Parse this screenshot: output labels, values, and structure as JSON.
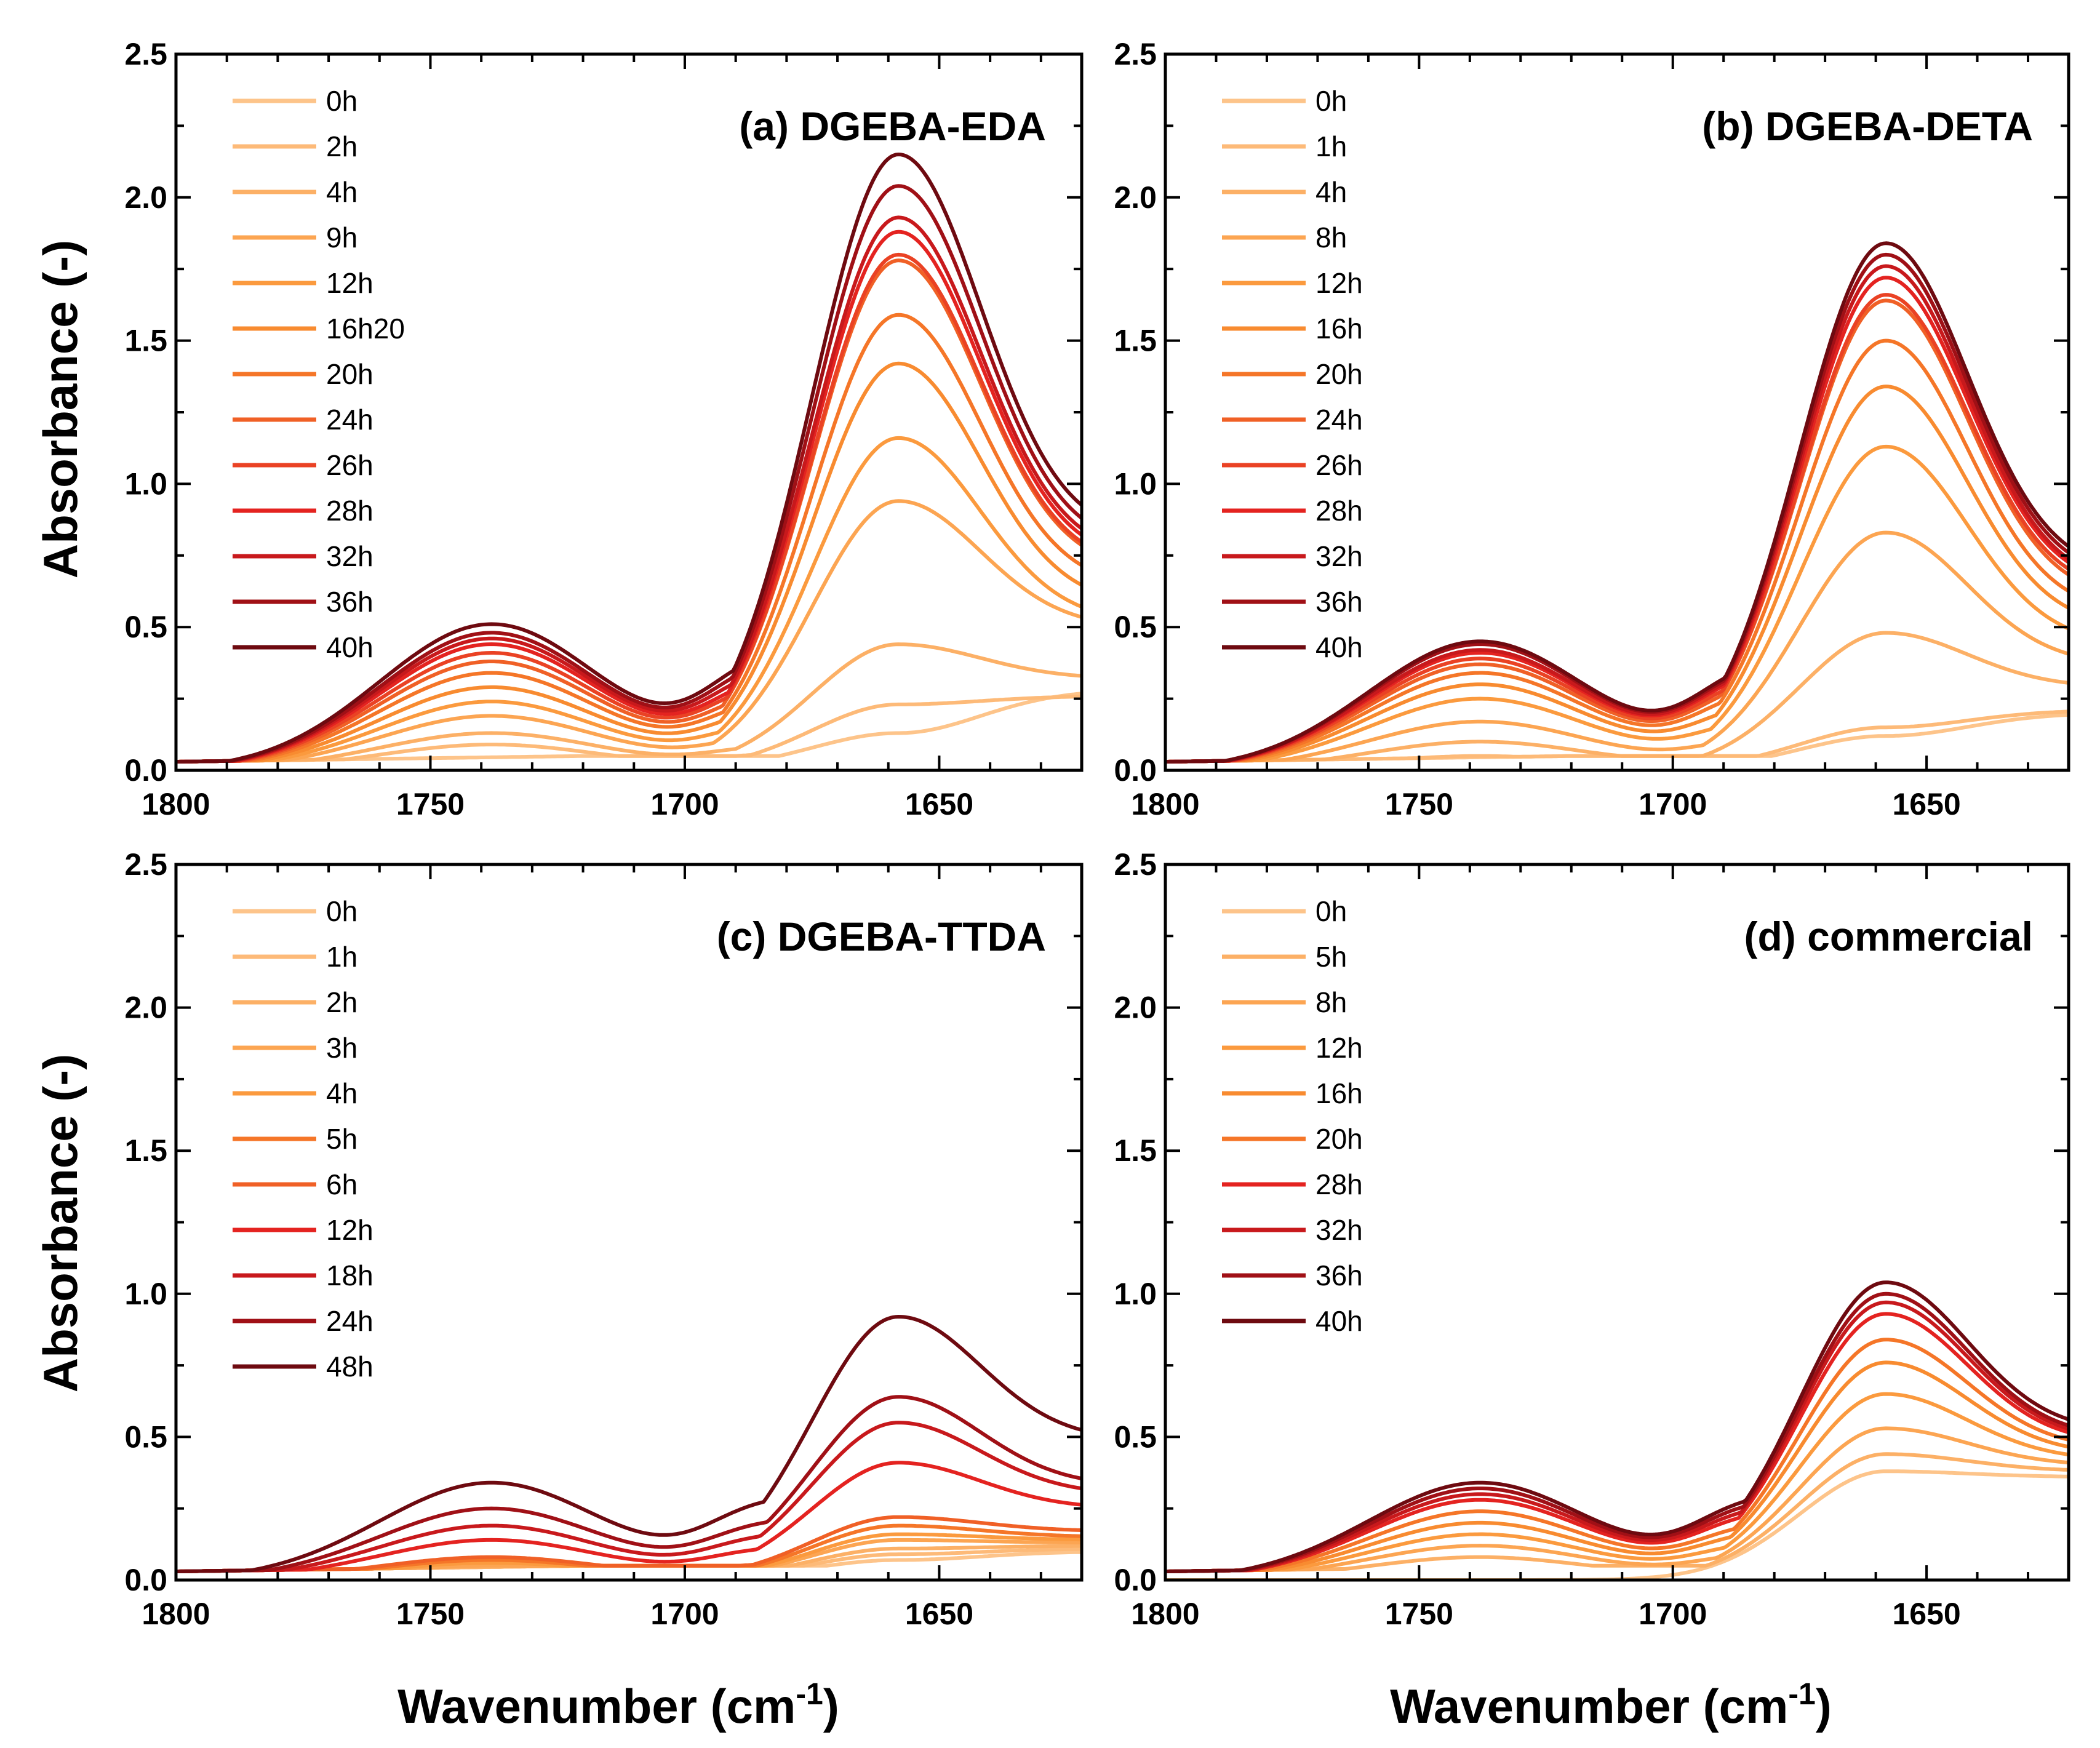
{
  "figure": {
    "ylabel": "Absorbance (-)",
    "xlabel_main": "Wavenumber (cm",
    "xlabel_sup": "-1",
    "xlabel_close": ")"
  },
  "chart_data": [
    {
      "type": "line",
      "title": "(a) DGEBA-EDA",
      "xlim": [
        1800,
        1622
      ],
      "ylim": [
        0,
        2.5
      ],
      "xticks": [
        "1800",
        "1750",
        "1700",
        "1650"
      ],
      "yticks": [
        "0.0",
        "0.5",
        "1.0",
        "1.5",
        "2.0",
        "2.5"
      ],
      "xlabel": "Wavenumber (cm-1)",
      "ylabel": "Absorbance (-)",
      "legend": "top-left",
      "series": [
        {
          "name": "0h",
          "color": "#fdc48a",
          "bandTop": 0.04,
          "bandBottom": 0.04,
          "peak": 0.13,
          "end": 0.28
        },
        {
          "name": "2h",
          "color": "#fdba78",
          "bandTop": 0.09,
          "bandBottom": 0.06,
          "peak": 0.23,
          "end": 0.26
        },
        {
          "name": "4h",
          "color": "#fcb066",
          "bandTop": 0.13,
          "bandBottom": 0.09,
          "peak": 0.44,
          "end": 0.32
        },
        {
          "name": "9h",
          "color": "#fca552",
          "bandTop": 0.19,
          "bandBottom": 0.13,
          "peak": 0.94,
          "end": 0.5
        },
        {
          "name": "12h",
          "color": "#fb9a3e",
          "bandTop": 0.24,
          "bandBottom": 0.18,
          "peak": 1.16,
          "end": 0.52
        },
        {
          "name": "16h20",
          "color": "#f88b30",
          "bandTop": 0.29,
          "bandBottom": 0.23,
          "peak": 1.42,
          "end": 0.58
        },
        {
          "name": "20h",
          "color": "#f57628",
          "bandTop": 0.34,
          "bandBottom": 0.27,
          "peak": 1.59,
          "end": 0.64
        },
        {
          "name": "24h",
          "color": "#f06026",
          "bandTop": 0.38,
          "bandBottom": 0.3,
          "peak": 1.78,
          "end": 0.7
        },
        {
          "name": "26h",
          "color": "#ea4224",
          "bandTop": 0.41,
          "bandBottom": 0.33,
          "peak": 1.8,
          "end": 0.71
        },
        {
          "name": "28h",
          "color": "#e42320",
          "bandTop": 0.44,
          "bandBottom": 0.35,
          "peak": 1.88,
          "end": 0.73
        },
        {
          "name": "32h",
          "color": "#c8191c",
          "bandTop": 0.46,
          "bandBottom": 0.38,
          "peak": 1.93,
          "end": 0.75
        },
        {
          "name": "36h",
          "color": "#a01016",
          "bandTop": 0.48,
          "bandBottom": 0.41,
          "peak": 2.04,
          "end": 0.78
        },
        {
          "name": "40h",
          "color": "#6e0a10",
          "bandTop": 0.51,
          "bandBottom": 0.44,
          "peak": 2.15,
          "end": 0.82
        }
      ]
    },
    {
      "type": "line",
      "title": "(b) DGEBA-DETA",
      "xlim": [
        1800,
        1622
      ],
      "ylim": [
        0,
        2.5
      ],
      "xticks": [
        "1800",
        "1750",
        "1700",
        "1650"
      ],
      "yticks": [
        "0.0",
        "0.5",
        "1.0",
        "1.5",
        "2.0",
        "2.5"
      ],
      "xlabel": "Wavenumber (cm-1)",
      "ylabel": "Absorbance (-)",
      "legend": "top-left",
      "series": [
        {
          "name": "0h",
          "color": "#fdc48a",
          "bandTop": 0.04,
          "bandBottom": 0.04,
          "peak": 0.12,
          "end": 0.2
        },
        {
          "name": "1h",
          "color": "#fdba78",
          "bandTop": 0.05,
          "bandBottom": 0.04,
          "peak": 0.15,
          "end": 0.21
        },
        {
          "name": "4h",
          "color": "#fcb066",
          "bandTop": 0.1,
          "bandBottom": 0.07,
          "peak": 0.48,
          "end": 0.29
        },
        {
          "name": "8h",
          "color": "#fca552",
          "bandTop": 0.17,
          "bandBottom": 0.12,
          "peak": 0.83,
          "end": 0.37
        },
        {
          "name": "12h",
          "color": "#fb9a3e",
          "bandTop": 0.25,
          "bandBottom": 0.19,
          "peak": 1.13,
          "end": 0.44
        },
        {
          "name": "16h",
          "color": "#f88b30",
          "bandTop": 0.3,
          "bandBottom": 0.25,
          "peak": 1.34,
          "end": 0.5
        },
        {
          "name": "20h",
          "color": "#f57628",
          "bandTop": 0.34,
          "bandBottom": 0.3,
          "peak": 1.5,
          "end": 0.55
        },
        {
          "name": "24h",
          "color": "#f06026",
          "bandTop": 0.37,
          "bandBottom": 0.33,
          "peak": 1.64,
          "end": 0.6
        },
        {
          "name": "26h",
          "color": "#ea4224",
          "bandTop": 0.39,
          "bandBottom": 0.35,
          "peak": 1.66,
          "end": 0.62
        },
        {
          "name": "28h",
          "color": "#e42320",
          "bandTop": 0.41,
          "bandBottom": 0.37,
          "peak": 1.72,
          "end": 0.64
        },
        {
          "name": "32h",
          "color": "#c8191c",
          "bandTop": 0.42,
          "bandBottom": 0.38,
          "peak": 1.76,
          "end": 0.65
        },
        {
          "name": "36h",
          "color": "#a01016",
          "bandTop": 0.44,
          "bandBottom": 0.39,
          "peak": 1.8,
          "end": 0.67
        },
        {
          "name": "40h",
          "color": "#6e0a10",
          "bandTop": 0.45,
          "bandBottom": 0.4,
          "peak": 1.84,
          "end": 0.69
        }
      ]
    },
    {
      "type": "line",
      "title": "(c) DGEBA-TTDA",
      "xlim": [
        1800,
        1622
      ],
      "ylim": [
        0,
        2.5
      ],
      "xticks": [
        "1800",
        "1750",
        "1700",
        "1650"
      ],
      "yticks": [
        "0.0",
        "0.5",
        "1.0",
        "1.5",
        "2.0",
        "2.5"
      ],
      "xlabel": "Wavenumber (cm-1)",
      "ylabel": "Absorbance (-)",
      "legend": "top-left",
      "series": [
        {
          "name": "0h",
          "color": "#fdc48a",
          "bandTop": 0.02,
          "bandBottom": 0.02,
          "peak": 0.07,
          "end": 0.1
        },
        {
          "name": "1h",
          "color": "#fdba78",
          "bandTop": 0.03,
          "bandBottom": 0.02,
          "peak": 0.09,
          "end": 0.11
        },
        {
          "name": "2h",
          "color": "#fcb066",
          "bandTop": 0.04,
          "bandBottom": 0.03,
          "peak": 0.11,
          "end": 0.12
        },
        {
          "name": "3h",
          "color": "#fca552",
          "bandTop": 0.05,
          "bandBottom": 0.04,
          "peak": 0.14,
          "end": 0.13
        },
        {
          "name": "4h",
          "color": "#fb9a3e",
          "bandTop": 0.06,
          "bandBottom": 0.05,
          "peak": 0.16,
          "end": 0.14
        },
        {
          "name": "5h",
          "color": "#f57628",
          "bandTop": 0.07,
          "bandBottom": 0.05,
          "peak": 0.19,
          "end": 0.15
        },
        {
          "name": "6h",
          "color": "#f06026",
          "bandTop": 0.08,
          "bandBottom": 0.06,
          "peak": 0.22,
          "end": 0.17
        },
        {
          "name": "12h",
          "color": "#e42320",
          "bandTop": 0.14,
          "bandBottom": 0.12,
          "peak": 0.41,
          "end": 0.25
        },
        {
          "name": "18h",
          "color": "#c8191c",
          "bandTop": 0.19,
          "bandBottom": 0.17,
          "peak": 0.55,
          "end": 0.3
        },
        {
          "name": "24h",
          "color": "#a01016",
          "bandTop": 0.25,
          "bandBottom": 0.22,
          "peak": 0.64,
          "end": 0.33
        },
        {
          "name": "48h",
          "color": "#6e0a10",
          "bandTop": 0.34,
          "bandBottom": 0.3,
          "peak": 0.92,
          "end": 0.49
        }
      ]
    },
    {
      "type": "line",
      "title": "(d) commercial",
      "xlim": [
        1800,
        1622
      ],
      "ylim": [
        0,
        2.5
      ],
      "xticks": [
        "1800",
        "1750",
        "1700",
        "1650"
      ],
      "yticks": [
        "0.0",
        "0.5",
        "1.0",
        "1.5",
        "2.0",
        "2.5"
      ],
      "xlabel": "Wavenumber (cm-1)",
      "ylabel": "Absorbance (-)",
      "legend": "top-left",
      "series": [
        {
          "name": "0h",
          "color": "#fdc48a",
          "bandTop": 0.0,
          "bandBottom": 0.0,
          "peak": 0.38,
          "end": 0.36
        },
        {
          "name": "5h",
          "color": "#fcb066",
          "bandTop": 0.08,
          "bandBottom": 0.06,
          "peak": 0.44,
          "end": 0.38
        },
        {
          "name": "8h",
          "color": "#fca552",
          "bandTop": 0.12,
          "bandBottom": 0.1,
          "peak": 0.53,
          "end": 0.4
        },
        {
          "name": "12h",
          "color": "#fb9a3e",
          "bandTop": 0.16,
          "bandBottom": 0.14,
          "peak": 0.65,
          "end": 0.42
        },
        {
          "name": "16h",
          "color": "#f88b30",
          "bandTop": 0.2,
          "bandBottom": 0.18,
          "peak": 0.76,
          "end": 0.44
        },
        {
          "name": "20h",
          "color": "#f57628",
          "bandTop": 0.24,
          "bandBottom": 0.21,
          "peak": 0.84,
          "end": 0.46
        },
        {
          "name": "28h",
          "color": "#e42320",
          "bandTop": 0.28,
          "bandBottom": 0.25,
          "peak": 0.93,
          "end": 0.48
        },
        {
          "name": "32h",
          "color": "#c8191c",
          "bandTop": 0.3,
          "bandBottom": 0.27,
          "peak": 0.97,
          "end": 0.49
        },
        {
          "name": "36h",
          "color": "#a01016",
          "bandTop": 0.32,
          "bandBottom": 0.29,
          "peak": 1.0,
          "end": 0.5
        },
        {
          "name": "40h",
          "color": "#6e0a10",
          "bandTop": 0.34,
          "bandBottom": 0.31,
          "peak": 1.04,
          "end": 0.52
        }
      ]
    }
  ]
}
